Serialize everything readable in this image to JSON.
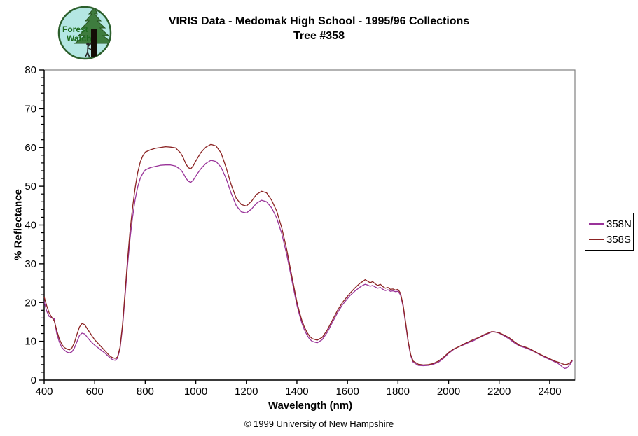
{
  "header": {
    "title_line1": "VIRIS Data - Medomak High School - 1995/96 Collections",
    "title_line2": "Tree #358",
    "logo_text_line1": "Forest",
    "logo_text_line2": "Watch"
  },
  "footer": {
    "copyright": "© 1999 University of New Hampshire"
  },
  "colors": {
    "background": "#FFFFFF",
    "axis": "#000000",
    "plot_border": "#808080",
    "series_358N": "#993399",
    "series_358S": "#8B2323",
    "logo_ring": "#2C5F2C",
    "logo_background": "#B4E7E3",
    "logo_text": "#1E6B1E"
  },
  "chart_data": {
    "type": "line",
    "title": "VIRIS Data - Medomak High School - 1995/96 Collections Tree #358",
    "xlabel": "Wavelength (nm)",
    "ylabel": "% Reflectance",
    "xlim": [
      400,
      2500
    ],
    "ylim": [
      0,
      80
    ],
    "x_ticks": [
      400,
      600,
      800,
      1000,
      1200,
      1400,
      1600,
      1800,
      2000,
      2200,
      2400
    ],
    "y_ticks": [
      0,
      10,
      20,
      30,
      40,
      50,
      60,
      70,
      80
    ],
    "y_minor_step": 2,
    "grid": false,
    "legend_position": "right-outside",
    "x": [
      400,
      410,
      420,
      430,
      440,
      450,
      460,
      470,
      480,
      490,
      500,
      510,
      520,
      530,
      540,
      550,
      560,
      570,
      580,
      590,
      600,
      610,
      620,
      630,
      640,
      650,
      660,
      670,
      680,
      690,
      700,
      710,
      720,
      730,
      740,
      750,
      760,
      770,
      780,
      790,
      800,
      820,
      840,
      860,
      880,
      900,
      920,
      940,
      950,
      960,
      970,
      980,
      990,
      1000,
      1010,
      1020,
      1040,
      1060,
      1080,
      1100,
      1120,
      1140,
      1160,
      1180,
      1200,
      1220,
      1240,
      1260,
      1280,
      1300,
      1320,
      1340,
      1360,
      1380,
      1400,
      1410,
      1420,
      1430,
      1440,
      1450,
      1460,
      1480,
      1500,
      1520,
      1540,
      1560,
      1580,
      1600,
      1610,
      1620,
      1630,
      1640,
      1650,
      1660,
      1670,
      1680,
      1690,
      1700,
      1710,
      1720,
      1730,
      1740,
      1750,
      1760,
      1770,
      1780,
      1790,
      1800,
      1810,
      1820,
      1830,
      1840,
      1850,
      1860,
      1880,
      1900,
      1920,
      1940,
      1960,
      1980,
      2000,
      2020,
      2040,
      2060,
      2080,
      2100,
      2120,
      2140,
      2160,
      2170,
      2180,
      2200,
      2220,
      2240,
      2260,
      2280,
      2300,
      2320,
      2340,
      2360,
      2380,
      2400,
      2410,
      2420,
      2430,
      2440,
      2450,
      2460,
      2470,
      2480,
      2490
    ],
    "series": [
      {
        "name": "358N",
        "color": "#993399",
        "values": [
          20.3,
          17.8,
          16.4,
          16.1,
          15.8,
          12.0,
          9.8,
          8.4,
          7.7,
          7.2,
          7.0,
          7.3,
          8.3,
          9.9,
          11.5,
          12.1,
          11.9,
          11.1,
          10.3,
          9.6,
          9.0,
          8.5,
          8.0,
          7.5,
          7.0,
          6.4,
          5.8,
          5.3,
          5.1,
          5.6,
          8.0,
          13.5,
          21.5,
          29.5,
          36.5,
          42.0,
          46.5,
          49.8,
          52.0,
          53.3,
          54.2,
          54.8,
          55.1,
          55.4,
          55.5,
          55.5,
          55.2,
          54.3,
          53.4,
          52.2,
          51.3,
          51.0,
          51.6,
          52.6,
          53.6,
          54.5,
          55.9,
          56.7,
          56.4,
          54.9,
          52.0,
          48.2,
          45.0,
          43.4,
          43.1,
          44.1,
          45.6,
          46.4,
          46.0,
          44.4,
          41.8,
          37.8,
          32.3,
          25.8,
          19.3,
          16.8,
          14.6,
          12.9,
          11.6,
          10.6,
          10.0,
          9.6,
          10.4,
          12.3,
          14.8,
          17.3,
          19.4,
          21.0,
          21.8,
          22.4,
          23.0,
          23.5,
          24.0,
          24.4,
          24.7,
          24.5,
          24.2,
          24.4,
          24.0,
          23.7,
          23.9,
          23.4,
          23.1,
          23.3,
          22.9,
          23.0,
          22.8,
          22.9,
          22.0,
          19.0,
          14.5,
          9.8,
          6.3,
          4.6,
          3.8,
          3.7,
          3.8,
          4.1,
          4.6,
          5.6,
          6.9,
          7.9,
          8.6,
          9.1,
          9.7,
          10.2,
          10.9,
          11.5,
          12.1,
          12.4,
          12.5,
          12.1,
          11.4,
          10.6,
          9.6,
          8.8,
          8.4,
          7.9,
          7.3,
          6.6,
          5.9,
          5.3,
          5.0,
          4.7,
          4.4,
          4.0,
          3.4,
          3.0,
          3.2,
          4.0,
          5.0
        ]
      },
      {
        "name": "358S",
        "color": "#8B2323",
        "values": [
          21.5,
          19.2,
          17.3,
          16.2,
          15.3,
          12.8,
          10.6,
          9.2,
          8.4,
          8.0,
          7.8,
          8.3,
          9.7,
          11.8,
          13.7,
          14.6,
          14.3,
          13.3,
          12.3,
          11.3,
          10.4,
          9.7,
          9.0,
          8.3,
          7.6,
          6.9,
          6.2,
          5.8,
          5.6,
          5.9,
          8.4,
          14.2,
          22.5,
          31.0,
          38.5,
          44.5,
          49.5,
          53.5,
          56.2,
          57.8,
          58.8,
          59.4,
          59.8,
          60.0,
          60.2,
          60.1,
          59.9,
          58.6,
          57.4,
          55.9,
          54.8,
          54.5,
          55.3,
          56.5,
          57.6,
          58.7,
          60.1,
          60.8,
          60.4,
          58.6,
          54.8,
          50.4,
          46.9,
          45.3,
          44.9,
          46.1,
          47.9,
          48.7,
          48.3,
          46.4,
          43.6,
          39.3,
          33.6,
          26.8,
          20.1,
          17.5,
          15.3,
          13.6,
          12.3,
          11.3,
          10.7,
          10.3,
          11.0,
          12.9,
          15.4,
          17.9,
          20.0,
          21.6,
          22.4,
          23.1,
          23.8,
          24.4,
          25.0,
          25.4,
          25.9,
          25.5,
          25.1,
          25.4,
          24.8,
          24.4,
          24.7,
          24.1,
          23.7,
          23.9,
          23.4,
          23.5,
          23.2,
          23.4,
          22.4,
          19.4,
          14.9,
          10.1,
          6.6,
          4.9,
          4.1,
          3.9,
          4.0,
          4.3,
          4.9,
          5.9,
          7.1,
          8.0,
          8.6,
          9.3,
          9.9,
          10.5,
          11.0,
          11.7,
          12.2,
          12.5,
          12.4,
          12.2,
          11.6,
          10.9,
          9.9,
          9.0,
          8.6,
          8.1,
          7.4,
          6.7,
          6.1,
          5.5,
          5.2,
          4.9,
          4.7,
          4.5,
          4.2,
          4.0,
          4.1,
          4.4,
          5.2
        ]
      }
    ]
  }
}
